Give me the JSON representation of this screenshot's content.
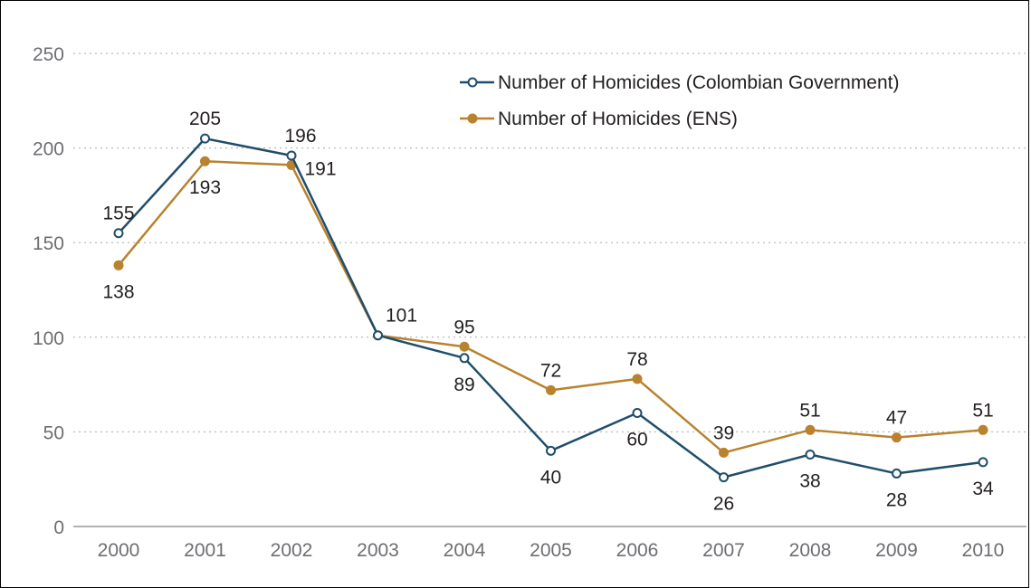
{
  "chart_data": {
    "type": "line",
    "title": "",
    "xlabel": "",
    "ylabel": "",
    "categories": [
      "2000",
      "2001",
      "2002",
      "2003",
      "2004",
      "2005",
      "2006",
      "2007",
      "2008",
      "2009",
      "2010"
    ],
    "y_ticks": [
      "0",
      "50",
      "100",
      "150",
      "200",
      "250"
    ],
    "ylim": [
      0,
      250
    ],
    "grid": true,
    "legend_position": "top-right",
    "series": [
      {
        "name": "Number of Homicides (Colombian Government)",
        "color": "#1f4e6b",
        "marker": "hollow-circle",
        "values": [
          155,
          205,
          196,
          101,
          89,
          40,
          60,
          26,
          38,
          28,
          34
        ],
        "labels": [
          "155",
          "205",
          "196",
          "",
          "89",
          "40",
          "60",
          "26",
          "38",
          "28",
          "34"
        ]
      },
      {
        "name": "Number of Homicides (ENS)",
        "color": "#b8822e",
        "marker": "filled-circle",
        "values": [
          138,
          193,
          191,
          101,
          95,
          72,
          78,
          39,
          51,
          47,
          51
        ],
        "labels": [
          "138",
          "193",
          "191",
          "101",
          "95",
          "72",
          "78",
          "39",
          "51",
          "47",
          "51"
        ]
      }
    ]
  }
}
